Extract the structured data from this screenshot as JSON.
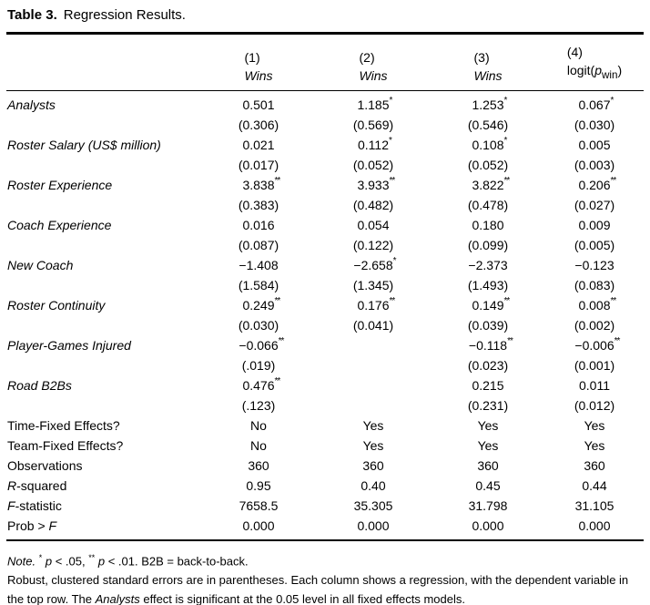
{
  "title": {
    "label": "Table 3.",
    "text": "Regression Results."
  },
  "table": {
    "columns": [
      {
        "num": "(1)",
        "dv": [
          {
            "text": "Wins",
            "italic": true
          }
        ]
      },
      {
        "num": "(2)",
        "dv": [
          {
            "text": "Wins",
            "italic": true
          }
        ]
      },
      {
        "num": "(3)",
        "dv": [
          {
            "text": "Wins",
            "italic": true
          }
        ]
      },
      {
        "num": "(4)",
        "dv": [
          {
            "text": "logit("
          },
          {
            "text": "p",
            "italic": true
          },
          {
            "text": "win",
            "sub": true
          },
          {
            "text": ")"
          }
        ]
      }
    ],
    "rows": [
      {
        "type": "coef",
        "label": [
          {
            "text": "Analysts",
            "italic": true
          }
        ],
        "est": [
          "0.501",
          "1.185",
          "1.253",
          "0.067"
        ],
        "stars": [
          "",
          "*",
          "*",
          "*"
        ],
        "se": [
          "(0.306)",
          "(0.569)",
          "(0.546)",
          "(0.030)"
        ]
      },
      {
        "type": "coef",
        "label": [
          {
            "text": "Roster Salary (US$ million)",
            "italic": true
          }
        ],
        "est": [
          "0.021",
          "0.112",
          "0.108",
          "0.005"
        ],
        "stars": [
          "",
          "*",
          "*",
          ""
        ],
        "se": [
          "(0.017)",
          "(0.052)",
          "(0.052)",
          "(0.003)"
        ]
      },
      {
        "type": "coef",
        "label": [
          {
            "text": "Roster Experience",
            "italic": true
          }
        ],
        "est": [
          "3.838",
          "3.933",
          "3.822",
          "0.206"
        ],
        "stars": [
          "**",
          "**",
          "**",
          "**"
        ],
        "se": [
          "(0.383)",
          "(0.482)",
          "(0.478)",
          "(0.027)"
        ]
      },
      {
        "type": "coef",
        "label": [
          {
            "text": "Coach Experience",
            "italic": true
          }
        ],
        "est": [
          "0.016",
          "0.054",
          "0.180",
          "0.009"
        ],
        "stars": [
          "",
          "",
          "",
          ""
        ],
        "se": [
          "(0.087)",
          "(0.122)",
          "(0.099)",
          "(0.005)"
        ]
      },
      {
        "type": "coef",
        "label": [
          {
            "text": "New Coach",
            "italic": true
          }
        ],
        "est": [
          "−1.408",
          "−2.658",
          "−2.373",
          "−0.123"
        ],
        "stars": [
          "",
          "*",
          "",
          ""
        ],
        "se": [
          "(1.584)",
          "(1.345)",
          "(1.493)",
          "(0.083)"
        ]
      },
      {
        "type": "coef",
        "label": [
          {
            "text": "Roster Continuity",
            "italic": true
          }
        ],
        "est": [
          "0.249",
          "0.176",
          "0.149",
          "0.008"
        ],
        "stars": [
          "**",
          "**",
          "**",
          "**"
        ],
        "se": [
          "(0.030)",
          "(0.041)",
          "(0.039)",
          "(0.002)"
        ]
      },
      {
        "type": "coef",
        "label": [
          {
            "text": "Player-Games Injured",
            "italic": true
          }
        ],
        "est": [
          "−0.066",
          "",
          "−0.118",
          "−0.006"
        ],
        "stars": [
          "**",
          "",
          "**",
          "**"
        ],
        "se": [
          "(.019)",
          "",
          "(0.023)",
          "(0.001)"
        ]
      },
      {
        "type": "coef",
        "label": [
          {
            "text": "Road B2Bs",
            "italic": true
          }
        ],
        "est": [
          "0.476",
          "",
          "0.215",
          "0.011"
        ],
        "stars": [
          "**",
          "",
          "",
          ""
        ],
        "se": [
          "(.123)",
          "",
          "(0.231)",
          "(0.012)"
        ]
      },
      {
        "type": "info",
        "label": [
          {
            "text": "Time-Fixed Effects?"
          }
        ],
        "values": [
          "No",
          "Yes",
          "Yes",
          "Yes"
        ]
      },
      {
        "type": "info",
        "label": [
          {
            "text": "Team-Fixed Effects?"
          }
        ],
        "values": [
          "No",
          "Yes",
          "Yes",
          "Yes"
        ]
      },
      {
        "type": "info",
        "label": [
          {
            "text": "Observations"
          }
        ],
        "values": [
          "360",
          "360",
          "360",
          "360"
        ]
      },
      {
        "type": "info",
        "label": [
          {
            "text": "R",
            "italic": true
          },
          {
            "text": "-squared"
          }
        ],
        "values": [
          "0.95",
          "0.40",
          "0.45",
          "0.44"
        ]
      },
      {
        "type": "info",
        "label": [
          {
            "text": "F",
            "italic": true
          },
          {
            "text": "-statistic"
          }
        ],
        "values": [
          "7658.5",
          "35.305",
          "31.798",
          "31.105"
        ]
      },
      {
        "type": "info",
        "label": [
          {
            "text": "Prob > "
          },
          {
            "text": "F",
            "italic": true
          }
        ],
        "values": [
          "0.000",
          "0.000",
          "0.000",
          "0.000"
        ]
      }
    ]
  },
  "notes": [
    {
      "segments": [
        {
          "text": "Note.",
          "italic": true
        },
        {
          "text": " "
        },
        {
          "text": "*",
          "sup": true
        },
        {
          "text": " "
        },
        {
          "text": "p",
          "italic": true
        },
        {
          "text": " < .05, "
        },
        {
          "text": "**",
          "sup": true
        },
        {
          "text": " "
        },
        {
          "text": "p",
          "italic": true
        },
        {
          "text": " < .01. B2B = back-to-back."
        }
      ]
    },
    {
      "segments": [
        {
          "text": "Robust, clustered standard errors are in parentheses. Each column shows a regression, with the dependent variable in the top row. The "
        },
        {
          "text": "Analysts",
          "italic": true
        },
        {
          "text": " effect is significant at the 0.05 level in all fixed effects models."
        }
      ]
    }
  ]
}
